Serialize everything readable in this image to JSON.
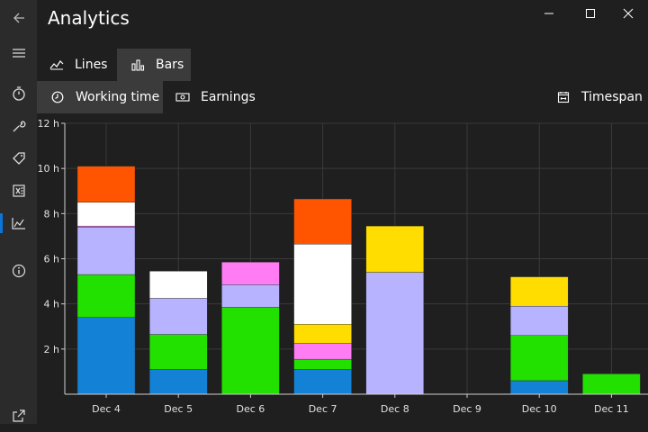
{
  "window": {
    "title": "Analytics",
    "controls": [
      "minimize",
      "maximize",
      "close"
    ]
  },
  "sidebar": {
    "items": [
      {
        "icon": "back-arrow-icon"
      },
      {
        "icon": "hamburger-menu-icon"
      },
      {
        "icon": "stopwatch-icon"
      },
      {
        "icon": "wrench-icon"
      },
      {
        "icon": "tag-icon"
      },
      {
        "icon": "excel-icon"
      },
      {
        "icon": "analytics-chart-icon",
        "active": true
      },
      {
        "icon": "info-icon"
      },
      {
        "icon": "open-external-icon"
      }
    ]
  },
  "chart_tabs": {
    "lines_label": "Lines",
    "bars_label": "Bars",
    "selected": "Bars"
  },
  "metric_tabs": {
    "working_time_label": "Working time",
    "earnings_label": "Earnings",
    "selected": "Working time"
  },
  "timespan_label": "Timespan",
  "colors": {
    "accent": "#0a74d8",
    "series": [
      "#1382d6",
      "#22e000",
      "#b8b3ff",
      "#ff7cf5",
      "#ffdd00",
      "#ffffff",
      "#ff5500"
    ]
  },
  "chart_data": {
    "type": "bar",
    "stacked": true,
    "categories": [
      "Dec 4",
      "Dec 5",
      "Dec 6",
      "Dec 7",
      "Dec 8",
      "Dec 9",
      "Dec 10",
      "Dec 11"
    ],
    "ylim": [
      0,
      12
    ],
    "yticks": [
      "2 h",
      "4 h",
      "6 h",
      "8 h",
      "10 h",
      "12 h"
    ],
    "grid": true,
    "series": [
      {
        "color": "#1382d6",
        "values": [
          3.4,
          1.1,
          0,
          1.1,
          0,
          0,
          0.6,
          0
        ]
      },
      {
        "color": "#22e000",
        "values": [
          1.9,
          1.55,
          3.85,
          0.45,
          0,
          0,
          2.0,
          0.9
        ]
      },
      {
        "color": "#b8b3ff",
        "values": [
          2.1,
          1.6,
          1.0,
          0,
          5.4,
          0,
          1.3,
          0
        ]
      },
      {
        "color": "#ff7cf5",
        "values": [
          0.05,
          0,
          1.0,
          0.7,
          0,
          0,
          0,
          0
        ]
      },
      {
        "color": "#ffdd00",
        "values": [
          0,
          0,
          0,
          0.85,
          2.05,
          0,
          1.3,
          0
        ]
      },
      {
        "color": "#ffffff",
        "values": [
          1.05,
          1.2,
          0,
          3.55,
          0,
          0,
          0,
          0
        ]
      },
      {
        "color": "#ff5500",
        "values": [
          1.6,
          0,
          0,
          2.0,
          0,
          0,
          0,
          0
        ]
      }
    ]
  }
}
